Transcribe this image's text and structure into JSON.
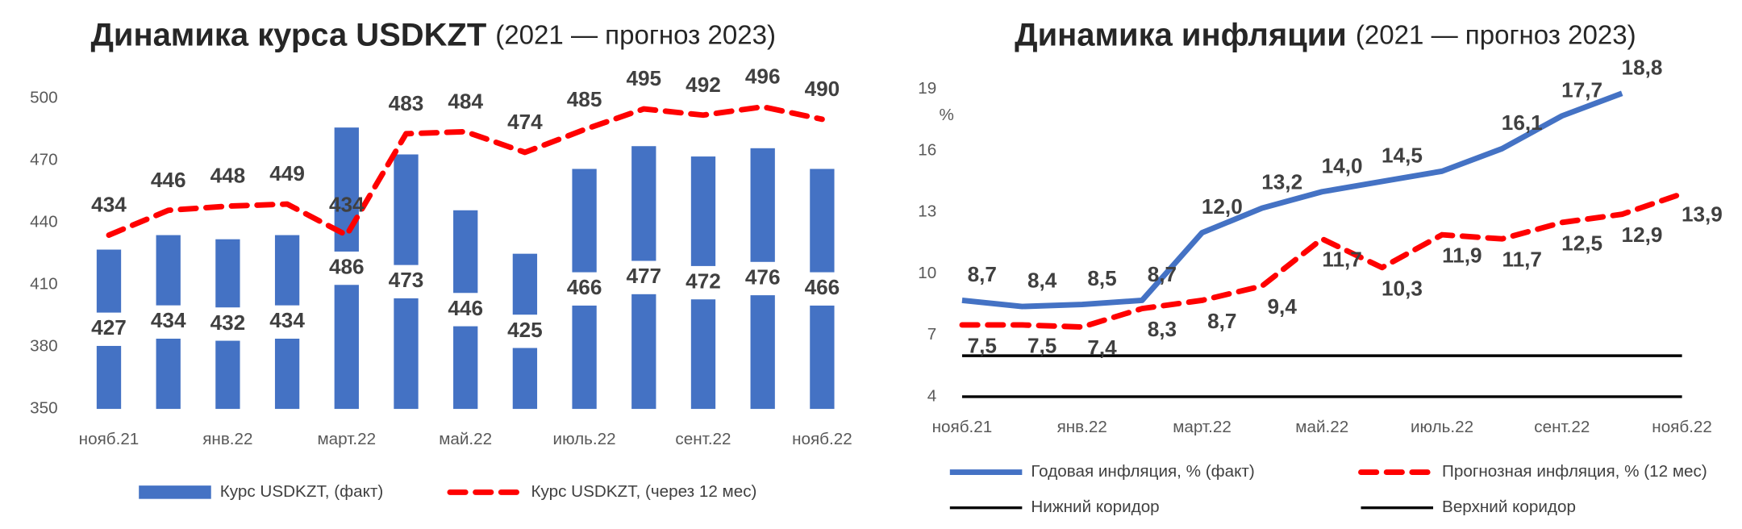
{
  "chart_data": [
    {
      "type": "bar",
      "title": "Динамика курса USDKZT",
      "subtitle": "(2021 — прогноз 2023)",
      "categories": [
        "нояб.21",
        null,
        "янв.22",
        null,
        "март.22",
        null,
        "май.22",
        null,
        "июль.22",
        null,
        "сент.22",
        null,
        "нояб.22"
      ],
      "series": [
        {
          "name": "Курс USDKZT, (факт)",
          "color": "#4472c4",
          "type": "bar",
          "label_position": "inside",
          "values": [
            427,
            434,
            432,
            434,
            486,
            473,
            446,
            425,
            466,
            477,
            472,
            476,
            466
          ]
        },
        {
          "name": "Курс USDKZT, (через 12 мес)",
          "color": "#ff0000",
          "type": "line",
          "dashed": true,
          "label_position": "above",
          "values": [
            434,
            446,
            448,
            449,
            434,
            483,
            484,
            474,
            485,
            495,
            492,
            496,
            490
          ]
        }
      ],
      "ylim": [
        350,
        510
      ],
      "yticks": [
        350,
        380,
        410,
        440,
        470,
        500
      ],
      "grid": false
    },
    {
      "type": "line",
      "title": "Динамика инфляции",
      "subtitle": "(2021 — прогноз 2023)",
      "ylabel": "%",
      "categories": [
        "нояб.21",
        null,
        "янв.22",
        null,
        "март.22",
        null,
        "май.22",
        null,
        "июль.22",
        null,
        "сент.22",
        null,
        "нояб.22"
      ],
      "series": [
        {
          "name": "Годовая инфляция, % (факт)",
          "color": "#4472c4",
          "label_position": "above",
          "values": [
            8.7,
            8.4,
            8.5,
            8.7,
            12.0,
            13.2,
            14.0,
            14.5,
            15.0,
            16.1,
            17.7,
            18.8,
            null
          ],
          "value_labels": [
            "8,7",
            "8,4",
            "8,5",
            "8,7",
            "12,0",
            "13,2",
            "14,0",
            "14,5",
            null,
            "16,1",
            "17,7",
            "18,8",
            null
          ]
        },
        {
          "name": "Прогнозная инфляция, % (12 мес)",
          "color": "#ff0000",
          "dashed": true,
          "label_position": "below",
          "values": [
            7.5,
            7.5,
            7.4,
            8.3,
            8.7,
            9.4,
            11.7,
            10.3,
            11.9,
            11.7,
            12.5,
            12.9,
            13.9
          ],
          "value_labels": [
            "7,5",
            "7,5",
            "7,4",
            "8,3",
            "8,7",
            "9,4",
            "11,7",
            "10,3",
            "11,9",
            "11,7",
            "12,5",
            "12,9",
            "13,9"
          ]
        },
        {
          "name": "Нижний коридор",
          "color": "#000000",
          "values": [
            4,
            4,
            4,
            4,
            4,
            4,
            4,
            4,
            4,
            4,
            4,
            4,
            4
          ]
        },
        {
          "name": "Верхний коридор",
          "color": "#000000",
          "values": [
            6,
            6,
            6,
            6,
            6,
            6,
            6,
            6,
            6,
            6,
            6,
            6,
            6
          ]
        }
      ],
      "ylim": [
        4,
        19.5
      ],
      "yticks": [
        4,
        7,
        10,
        13,
        16,
        19
      ],
      "grid": false
    }
  ]
}
